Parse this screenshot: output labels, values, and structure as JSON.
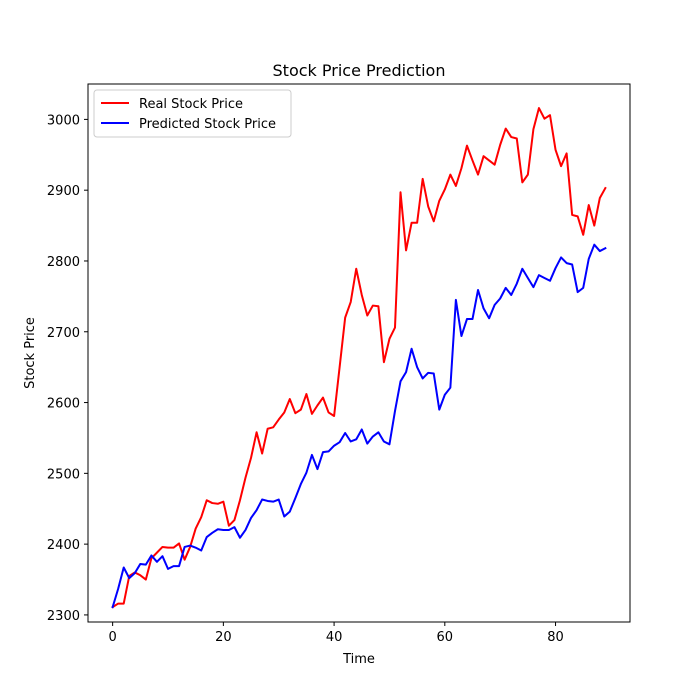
{
  "chart_data": {
    "type": "line",
    "title": "Stock Price Prediction",
    "xlabel": "Time",
    "ylabel": "Stock Price",
    "xlim": [
      -4.45,
      93.45
    ],
    "ylim": [
      2290,
      3050
    ],
    "xticks": [
      0,
      20,
      40,
      60,
      80
    ],
    "yticks": [
      2300,
      2400,
      2500,
      2600,
      2700,
      2800,
      2900,
      3000
    ],
    "grid": false,
    "legend": "top-left",
    "series": [
      {
        "name": "Real Stock Price",
        "color": "#ff0000",
        "values": [
          2311,
          2316,
          2316,
          2355,
          2360,
          2356,
          2350,
          2380,
          2388,
          2396,
          2395,
          2395,
          2401,
          2378,
          2396,
          2422,
          2438,
          2462,
          2458,
          2457,
          2460,
          2426,
          2434,
          2462,
          2494,
          2522,
          2558,
          2528,
          2563,
          2565,
          2576,
          2586,
          2605,
          2585,
          2590,
          2612,
          2584,
          2596,
          2607,
          2586,
          2581,
          2650,
          2720,
          2742,
          2789,
          2752,
          2723,
          2737,
          2736,
          2657,
          2690,
          2706,
          2897,
          2815,
          2854,
          2854,
          2916,
          2877,
          2856,
          2885,
          2901,
          2922,
          2906,
          2931,
          2963,
          2942,
          2922,
          2948,
          2942,
          2936,
          2964,
          2987,
          2975,
          2973,
          2911,
          2922,
          2986,
          3016,
          3001,
          3006,
          2957,
          2934,
          2952,
          2865,
          2863,
          2837,
          2879,
          2850,
          2889,
          2903
        ]
      },
      {
        "name": "Predicted Stock Price",
        "color": "#0000ff",
        "values": [
          2311,
          2337,
          2367,
          2352,
          2359,
          2372,
          2371,
          2384,
          2375,
          2383,
          2365,
          2369,
          2369,
          2396,
          2398,
          2395,
          2391,
          2410,
          2416,
          2421,
          2420,
          2420,
          2424,
          2409,
          2420,
          2437,
          2448,
          2463,
          2461,
          2460,
          2463,
          2439,
          2446,
          2465,
          2485,
          2501,
          2526,
          2506,
          2530,
          2531,
          2539,
          2544,
          2557,
          2545,
          2548,
          2562,
          2542,
          2552,
          2558,
          2545,
          2541,
          2588,
          2630,
          2643,
          2676,
          2650,
          2634,
          2642,
          2641,
          2590,
          2611,
          2621,
          2745,
          2694,
          2718,
          2718,
          2759,
          2733,
          2719,
          2738,
          2747,
          2762,
          2752,
          2768,
          2789,
          2776,
          2763,
          2780,
          2776,
          2772,
          2790,
          2805,
          2797,
          2795,
          2756,
          2762,
          2803,
          2823,
          2814,
          2818
        ]
      }
    ]
  }
}
